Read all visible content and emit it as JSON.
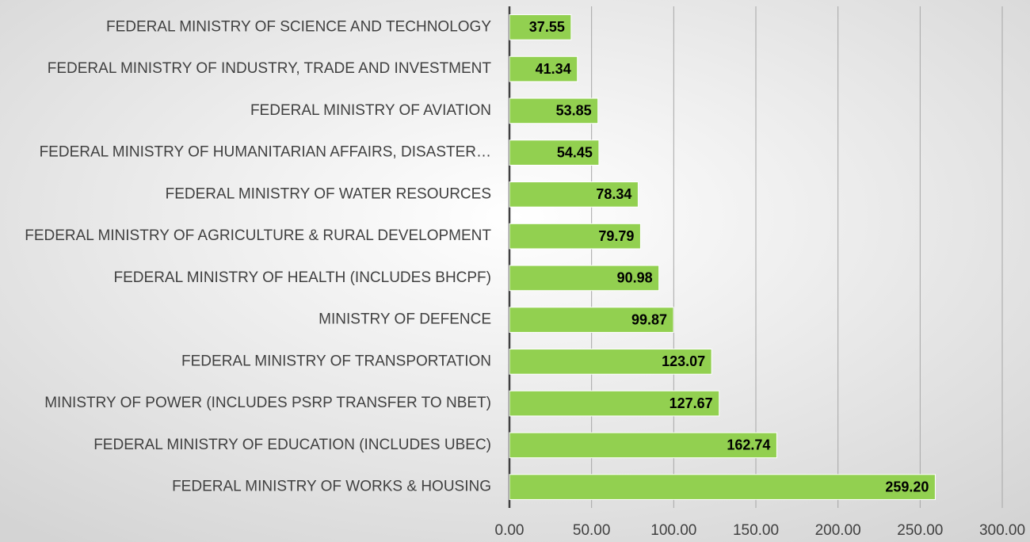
{
  "chart_data": {
    "type": "bar",
    "orientation": "horizontal",
    "categories": [
      "FEDERAL MINISTRY OF SCIENCE AND TECHNOLOGY",
      "FEDERAL MINISTRY OF INDUSTRY, TRADE AND INVESTMENT",
      "FEDERAL MINISTRY OF AVIATION",
      "FEDERAL MINISTRY OF HUMANITARIAN AFFAIRS, DISASTER…",
      "FEDERAL MINISTRY OF WATER RESOURCES",
      "FEDERAL MINISTRY OF AGRICULTURE & RURAL DEVELOPMENT",
      "FEDERAL MINISTRY OF HEALTH (INCLUDES BHCPF)",
      "MINISTRY OF DEFENCE",
      "FEDERAL MINISTRY OF TRANSPORTATION",
      "MINISTRY OF POWER (INCLUDES PSRP TRANSFER TO NBET)",
      "FEDERAL MINISTRY OF EDUCATION (INCLUDES UBEC)",
      "FEDERAL MINISTRY OF  WORKS & HOUSING"
    ],
    "values": [
      37.55,
      41.34,
      53.85,
      54.45,
      78.34,
      79.79,
      90.98,
      99.87,
      123.07,
      127.67,
      162.74,
      259.2
    ],
    "value_labels": [
      "37.55",
      "41.34",
      "53.85",
      "54.45",
      "78.34",
      "79.79",
      "90.98",
      "99.87",
      "123.07",
      "127.67",
      "162.74",
      "259.20"
    ],
    "color": "#92d050",
    "xlim": [
      0,
      300
    ],
    "xticks": [
      {
        "value": 0,
        "label": "0.00"
      },
      {
        "value": 50,
        "label": "50.00"
      },
      {
        "value": 100,
        "label": "100.00"
      },
      {
        "value": 150,
        "label": "150.00"
      },
      {
        "value": 200,
        "label": "200.00"
      },
      {
        "value": 250,
        "label": "250.00"
      },
      {
        "value": 300,
        "label": "300.00"
      }
    ],
    "grid": true
  }
}
